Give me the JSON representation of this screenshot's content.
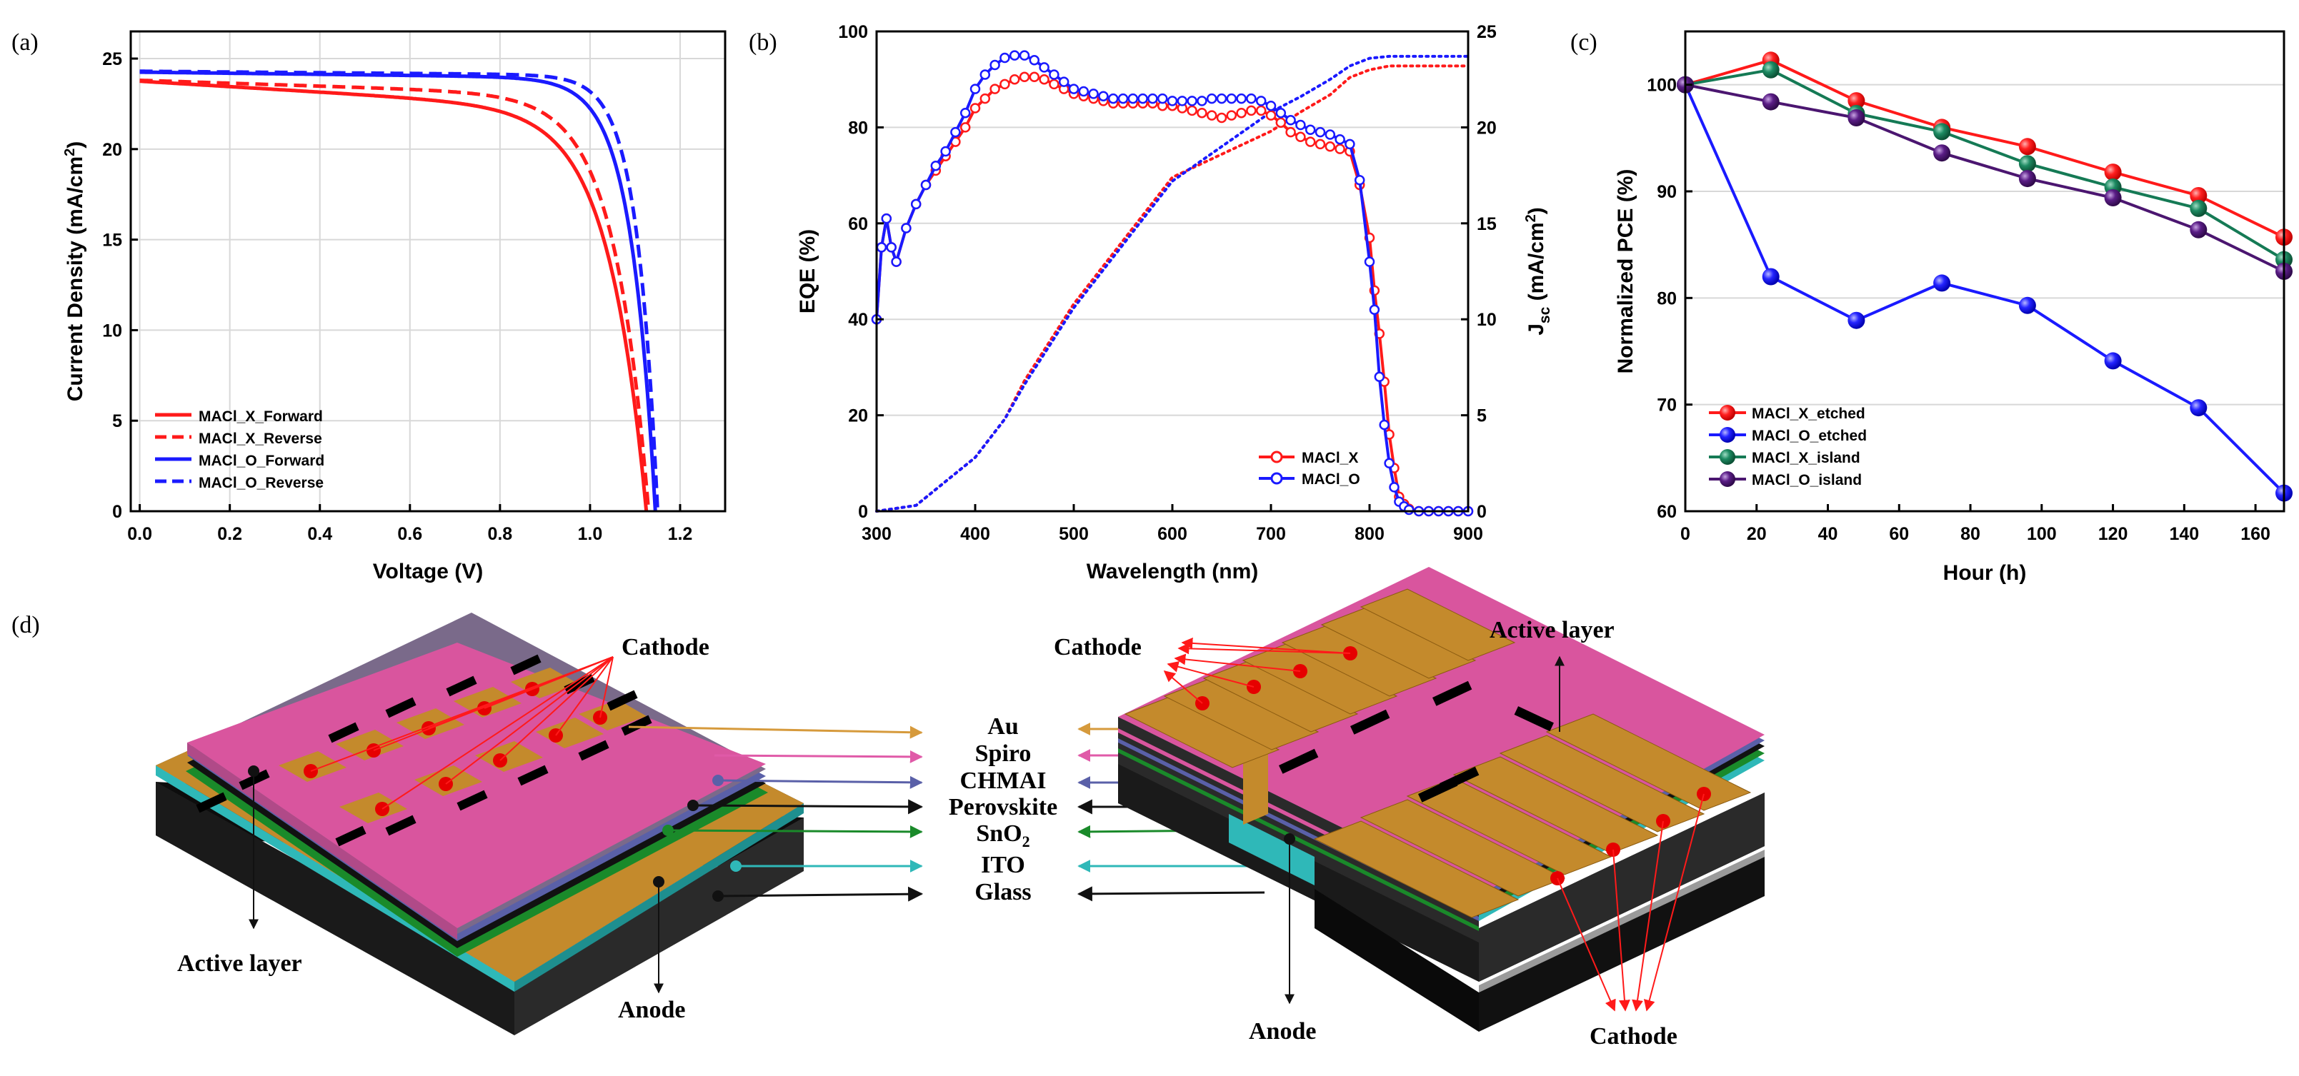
{
  "panel_labels": [
    "(a)",
    "(b)",
    "(c)",
    "(d)"
  ],
  "colors": {
    "red": "#ff1a1a",
    "blue": "#1a1aff",
    "green": "#157a55",
    "purple": "#4b1670",
    "grid": "#d8d8d8"
  },
  "chart_data": [
    {
      "panel": "(a)",
      "type": "line",
      "xlabel": "Voltage (V)",
      "ylabel": "Current Density (mA/cm",
      "ylabel_sup": "2",
      "ylabel_tail": ")",
      "xlim": [
        -0.02,
        1.3
      ],
      "ylim": [
        0,
        26.5
      ],
      "xticks": [
        0.0,
        0.2,
        0.4,
        0.6,
        0.8,
        1.0,
        1.2
      ],
      "xtick_labels": [
        "0.0",
        "0.2",
        "0.4",
        "0.6",
        "0.8",
        "1.0",
        "1.2"
      ],
      "yticks": [
        0,
        5,
        10,
        15,
        20,
        25
      ],
      "ytick_labels": [
        "0",
        "5",
        "10",
        "15",
        "20",
        "25"
      ],
      "legend_position": "bottom-left",
      "series": [
        {
          "name": "MACl_X_Forward",
          "color": "#ff1a1a",
          "dash": false,
          "jsc": 23.75,
          "voc": 1.125,
          "slope": 1.5,
          "n": 0.075
        },
        {
          "name": "MACl_X_Reverse",
          "color": "#ff1a1a",
          "dash": true,
          "jsc": 23.8,
          "voc": 1.13,
          "slope": 0.8,
          "n": 0.068
        },
        {
          "name": "MACl_O_Forward",
          "color": "#1a1aff",
          "dash": false,
          "jsc": 24.25,
          "voc": 1.145,
          "slope": 0.3,
          "n": 0.048
        },
        {
          "name": "MACl_O_Reverse",
          "color": "#1a1aff",
          "dash": true,
          "jsc": 24.3,
          "voc": 1.15,
          "slope": 0.2,
          "n": 0.04
        }
      ]
    },
    {
      "panel": "(b)",
      "type": "line",
      "xlabel": "Wavelength (nm)",
      "ylabel": "EQE (%)",
      "y2label_main": "J",
      "y2label_sub": "sc",
      "y2label_rest": " (mA/cm",
      "y2label_sup": "2",
      "y2label_tail": ")",
      "xlim": [
        300,
        900
      ],
      "ylim": [
        0,
        100
      ],
      "y2lim": [
        0,
        25
      ],
      "xticks": [
        300,
        400,
        500,
        600,
        700,
        800,
        900
      ],
      "xtick_labels": [
        "300",
        "400",
        "500",
        "600",
        "700",
        "800",
        "900"
      ],
      "yticks": [
        0,
        20,
        40,
        60,
        80,
        100
      ],
      "ytick_labels": [
        "0",
        "20",
        "40",
        "60",
        "80",
        "100"
      ],
      "y2ticks": [
        0,
        5,
        10,
        15,
        20,
        25
      ],
      "y2tick_labels": [
        "0",
        "5",
        "10",
        "15",
        "20",
        "25"
      ],
      "legend_position": "bottom-right",
      "series": [
        {
          "name": "MACl_X",
          "color": "#ff1a1a",
          "x": [
            300,
            305,
            310,
            315,
            320,
            330,
            340,
            350,
            360,
            370,
            380,
            390,
            400,
            410,
            420,
            430,
            440,
            450,
            460,
            470,
            480,
            490,
            500,
            510,
            520,
            530,
            540,
            550,
            560,
            570,
            580,
            590,
            600,
            610,
            620,
            630,
            640,
            650,
            660,
            670,
            680,
            690,
            700,
            710,
            720,
            730,
            740,
            750,
            760,
            770,
            780,
            790,
            800,
            805,
            810,
            815,
            820,
            825,
            830,
            835,
            840,
            850,
            860,
            870,
            880,
            890,
            900
          ],
          "y": [
            40,
            55,
            61,
            55,
            52,
            59,
            64,
            68,
            71,
            74,
            77,
            80,
            84,
            86,
            88,
            89,
            90,
            90.5,
            90.5,
            90,
            89,
            88,
            87,
            86.5,
            86,
            85.5,
            85,
            85,
            85,
            85,
            85,
            84.5,
            84.5,
            84,
            83.5,
            83,
            82.5,
            82,
            82.5,
            83,
            83.5,
            83.5,
            82.5,
            81,
            79,
            78,
            77,
            76.5,
            76,
            75.5,
            75,
            68,
            57,
            46,
            37,
            27,
            16,
            9,
            3,
            1.5,
            0.5,
            0,
            0,
            0,
            0,
            0,
            0
          ],
          "jsc_curve": {
            "x": [
              300,
              340,
              400,
              430,
              450,
              500,
              600,
              700,
              730,
              760,
              780,
              800,
              820,
              840,
              860,
              900
            ],
            "y": [
              0,
              0.3,
              2.8,
              4.8,
              6.8,
              10.8,
              17.4,
              19.8,
              20.8,
              21.7,
              22.6,
              23.0,
              23.2,
              23.2,
              23.2,
              23.2
            ]
          }
        },
        {
          "name": "MACl_O",
          "color": "#1a1aff",
          "x": [
            300,
            305,
            310,
            315,
            320,
            330,
            340,
            350,
            360,
            370,
            380,
            390,
            400,
            410,
            420,
            430,
            440,
            450,
            460,
            470,
            480,
            490,
            500,
            510,
            520,
            530,
            540,
            550,
            560,
            570,
            580,
            590,
            600,
            610,
            620,
            630,
            640,
            650,
            660,
            670,
            680,
            690,
            700,
            710,
            720,
            730,
            740,
            750,
            760,
            770,
            780,
            790,
            800,
            805,
            810,
            815,
            820,
            825,
            830,
            835,
            840,
            850,
            860,
            870,
            880,
            890,
            900
          ],
          "y": [
            40,
            55,
            61,
            55,
            52,
            59,
            64,
            68,
            72,
            75,
            79,
            83,
            88,
            91,
            93,
            94.5,
            95,
            95,
            94,
            92.5,
            91,
            89.5,
            88,
            87.5,
            87,
            86.5,
            86,
            86,
            86,
            86,
            86,
            86,
            85.5,
            85.5,
            85.5,
            85.5,
            86,
            86,
            86,
            86,
            86,
            85.5,
            84.5,
            83,
            81.5,
            80.5,
            79.5,
            79,
            78.5,
            77.5,
            76.5,
            69,
            52,
            42,
            28,
            18,
            10,
            5,
            2,
            1,
            0.3,
            0,
            0,
            0,
            0,
            0,
            0
          ],
          "jsc_curve": {
            "x": [
              300,
              340,
              400,
              430,
              450,
              500,
              600,
              700,
              730,
              760,
              780,
              800,
              820,
              840,
              860,
              900
            ],
            "y": [
              0,
              0.3,
              2.8,
              4.8,
              6.6,
              10.6,
              17.2,
              20.8,
              21.6,
              22.5,
              23.2,
              23.6,
              23.7,
              23.7,
              23.7,
              23.7
            ]
          }
        }
      ]
    },
    {
      "panel": "(c)",
      "type": "line",
      "xlabel": "Hour (h)",
      "ylabel": "Normalized PCE (%)",
      "xlim": [
        0,
        168
      ],
      "ylim": [
        60,
        105
      ],
      "xticks": [
        0,
        20,
        40,
        60,
        80,
        100,
        120,
        140,
        160
      ],
      "xtick_labels": [
        "0",
        "20",
        "40",
        "60",
        "80",
        "100",
        "120",
        "140",
        "160"
      ],
      "yticks": [
        60,
        70,
        80,
        90,
        100
      ],
      "ytick_labels": [
        "60",
        "70",
        "80",
        "90",
        "100"
      ],
      "legend_position": "bottom-left",
      "x": [
        0,
        24,
        48,
        72,
        96,
        120,
        144,
        168
      ],
      "series": [
        {
          "name": "MACl_X_etched",
          "color": "#ff1a1a",
          "values": [
            100,
            102.3,
            98.5,
            96.0,
            94.2,
            91.8,
            89.6,
            85.7
          ]
        },
        {
          "name": "MACl_O_etched",
          "color": "#1a1aff",
          "values": [
            100,
            82.0,
            77.9,
            81.4,
            79.3,
            74.1,
            69.7,
            61.7
          ]
        },
        {
          "name": "MACl_X_island",
          "color": "#157a55",
          "values": [
            100,
            101.4,
            97.3,
            95.6,
            92.6,
            90.4,
            88.4,
            83.6
          ]
        },
        {
          "name": "MACl_O_island",
          "color": "#4b1670",
          "values": [
            100,
            98.4,
            96.9,
            93.6,
            91.2,
            89.4,
            86.4,
            82.5
          ]
        }
      ]
    }
  ],
  "diagram": {
    "layers": [
      "Au",
      "Spiro",
      "CHMAI",
      "Perovskite",
      "SnO",
      "ITO",
      "Glass"
    ],
    "sno2_sub": "2",
    "left_labels": {
      "cathode": "Cathode",
      "active_layer": "Active layer",
      "anode": "Anode"
    },
    "right_labels": {
      "cathode_top": "Cathode",
      "active_layer": "Active layer",
      "anode": "Anode",
      "cathode_bottom": "Cathode"
    }
  }
}
